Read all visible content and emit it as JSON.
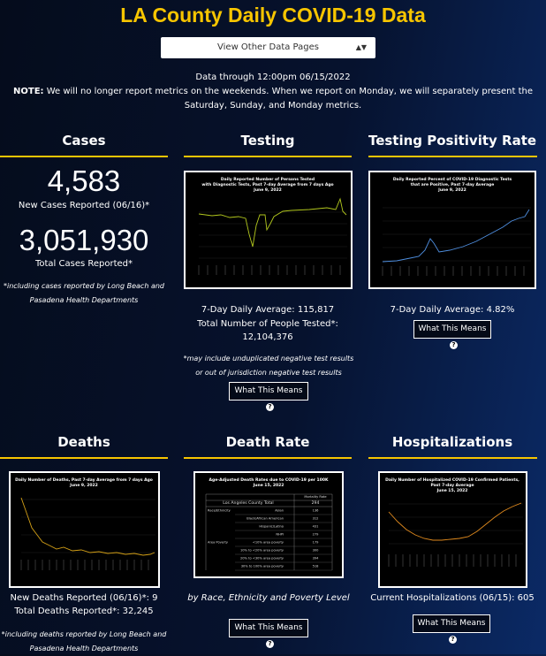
{
  "header": {
    "title": "LA County Daily COVID-19 Data",
    "select_label": "View Other Data Pages",
    "data_through": "Data through 12:00pm 06/15/2022",
    "note_label": "NOTE:",
    "note_text": "We will no longer report metrics on the weekends. When we report on Monday, we will separately present the Saturday, Sunday, and Monday metrics."
  },
  "cases": {
    "heading": "Cases",
    "new_cases": "4,583",
    "new_cases_label": "New Cases Reported (06/16)*",
    "total_cases": "3,051,930",
    "total_cases_label": "Total Cases Reported*",
    "footnote": "*including cases reported by Long Beach and Pasadena Health Departments"
  },
  "testing": {
    "heading": "Testing",
    "chart_title": [
      "Daily Reported Number of Persons Tested",
      "with Diagnostic Tests, Past 7-day Average from 7 days Ago",
      "June 9, 2022"
    ],
    "average": "7-Day Daily Average: 115,817",
    "total_label": "Total Number of People Tested*:",
    "total": "12,104,376",
    "footnote": "*may include unduplicated negative test results or out of jurisdiction negative test results",
    "button": "What This Means"
  },
  "positivity": {
    "heading": "Testing Positivity Rate",
    "chart_title": [
      "Daily Reported Percent of COVID-19 Diagnostic Tests",
      "that are Positive, Past 7-day Average",
      "June 9, 2022"
    ],
    "average": "7-Day Daily Average: 4.82%",
    "button": "What This Means"
  },
  "deaths": {
    "heading": "Deaths",
    "chart_title": [
      "Daily Number of Deaths, Past 7-day Average from 7 days Ago",
      "June 9, 2022"
    ],
    "new_deaths": "New Deaths Reported (06/16)*: 9",
    "total_deaths": "Total Deaths Reported*: 32,245",
    "footnote": "*including deaths reported by Long Beach and Pasadena Health Departments"
  },
  "death_rate": {
    "heading": "Death Rate",
    "table_title": [
      "Age-Adjusted Death Rates due to COVID-19 per 100K",
      "June 15, 2022"
    ],
    "column_header": "Mortality Rate",
    "total_row": [
      "Los Angeles County Total",
      "294"
    ],
    "rows": [
      [
        "Race/Ethnicity",
        "Asian",
        "136"
      ],
      [
        "",
        "Black/African American",
        "312"
      ],
      [
        "",
        "Hispanic/Latino",
        "431"
      ],
      [
        "",
        "NHPI",
        "279"
      ],
      [
        "Area Poverty",
        "<10% area poverty",
        "179"
      ],
      [
        "",
        "10% to <20% area poverty",
        "300"
      ],
      [
        "",
        "20% to <30% area poverty",
        "394"
      ],
      [
        "",
        "30% to 100% area poverty",
        "518"
      ]
    ],
    "caption": "by Race, Ethnicity and Poverty Level",
    "button": "What This Means"
  },
  "hospitalizations": {
    "heading": "Hospitalizations",
    "chart_title": [
      "Daily Number of Hospitalized COVID-19 Confirmed Patients,",
      "Past 7-day Average",
      "June 15, 2022"
    ],
    "current": "Current Hospitalizations (06/15): 605",
    "button": "What This Means"
  }
}
